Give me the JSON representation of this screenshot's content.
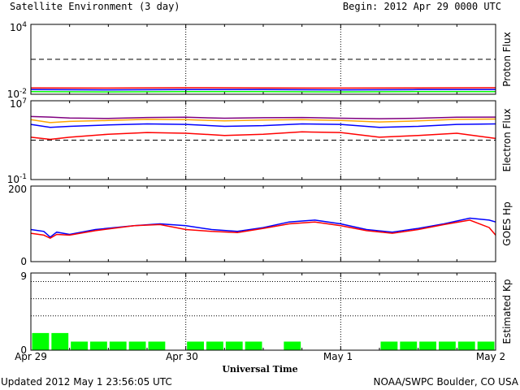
{
  "header": {
    "title": "Satellite Environment (3 day)",
    "begin": "Begin:  2012 Apr 29 0000 UTC"
  },
  "footer": {
    "updated": "Updated 2012 May  1 23:56:05 UTC",
    "credit": "NOAA/SWPC Boulder, CO USA"
  },
  "x_axis": {
    "label": "Universal Time",
    "ticks": [
      "Apr 29",
      "Apr 30",
      "May 1",
      "May 2"
    ]
  },
  "colors": {
    "red": "#ff0000",
    "blue": "#0000ff",
    "green": "#00ff00",
    "orange": "#ffa500",
    "purple": "#800080",
    "kp_bar": "#00ff00"
  },
  "chart_data": [
    {
      "type": "line",
      "name": "proton-flux",
      "ylabel": "Proton Flux",
      "scale": "log",
      "ylim": [
        0.01,
        10000
      ],
      "y_ticks": [
        {
          "v": 0.01,
          "base": "10",
          "exp": "-2"
        },
        {
          "v": 10000,
          "base": "10",
          "exp": "4"
        }
      ],
      "threshold": 10,
      "x": [
        0,
        12,
        24,
        36,
        48,
        60,
        72
      ],
      "series": [
        {
          "color": "red",
          "values": [
            0.035,
            0.034,
            0.036,
            0.035,
            0.034,
            0.035,
            0.036
          ]
        },
        {
          "color": "blue",
          "values": [
            0.025,
            0.024,
            0.025,
            0.025,
            0.024,
            0.025,
            0.025
          ]
        },
        {
          "color": "green",
          "values": [
            0.017,
            0.016,
            0.017,
            0.017,
            0.016,
            0.017,
            0.017
          ]
        }
      ]
    },
    {
      "type": "line",
      "name": "electron-flux",
      "ylabel": "Electron Flux",
      "scale": "log",
      "ylim": [
        0.1,
        10000000
      ],
      "y_ticks": [
        {
          "v": 0.1,
          "base": "10",
          "exp": "-1"
        },
        {
          "v": 10000000,
          "base": "10",
          "exp": "7"
        }
      ],
      "threshold": 1000,
      "x": [
        0,
        3,
        6,
        12,
        18,
        24,
        30,
        36,
        42,
        48,
        54,
        60,
        66,
        72
      ],
      "series": [
        {
          "color": "purple",
          "values": [
            250000,
            220000,
            180000,
            160000,
            200000,
            210000,
            170000,
            190000,
            200000,
            170000,
            150000,
            170000,
            210000,
            220000
          ]
        },
        {
          "color": "orange",
          "values": [
            120000,
            60000,
            80000,
            100000,
            130000,
            120000,
            90000,
            110000,
            120000,
            100000,
            70000,
            90000,
            130000,
            140000
          ]
        },
        {
          "color": "blue",
          "values": [
            40000,
            20000,
            25000,
            35000,
            45000,
            40000,
            25000,
            30000,
            45000,
            40000,
            20000,
            25000,
            40000,
            45000
          ]
        },
        {
          "color": "red",
          "values": [
            2000,
            1200,
            2000,
            4000,
            6000,
            5000,
            3000,
            4000,
            7000,
            6000,
            2000,
            3000,
            5000,
            1500
          ]
        }
      ]
    },
    {
      "type": "line",
      "name": "goes-hp",
      "ylabel": "GOES Hp",
      "scale": "linear",
      "ylim": [
        0,
        200
      ],
      "y_ticks": [
        {
          "v": 0,
          "label": "0"
        },
        {
          "v": 200,
          "label": "200"
        }
      ],
      "x": [
        0,
        2,
        3,
        4,
        6,
        10,
        16,
        20,
        24,
        28,
        32,
        36,
        40,
        44,
        48,
        52,
        56,
        60,
        64,
        68,
        71,
        72
      ],
      "series": [
        {
          "color": "blue",
          "values": [
            85,
            80,
            65,
            78,
            72,
            85,
            95,
            100,
            95,
            85,
            80,
            90,
            105,
            110,
            100,
            85,
            78,
            88,
            100,
            115,
            110,
            105
          ]
        },
        {
          "color": "red",
          "values": [
            75,
            70,
            62,
            72,
            70,
            82,
            95,
            98,
            85,
            80,
            77,
            88,
            100,
            105,
            95,
            82,
            75,
            85,
            98,
            110,
            90,
            70
          ]
        }
      ]
    },
    {
      "type": "bar",
      "name": "estimated-kp",
      "ylabel": "Estimated Kp",
      "scale": "linear",
      "ylim": [
        0,
        9
      ],
      "y_ticks": [
        {
          "v": 0,
          "label": "0"
        },
        {
          "v": 9,
          "label": "9"
        }
      ],
      "dotted_levels": [
        4,
        6,
        8
      ],
      "bar_hours": 3,
      "values": [
        2,
        2,
        1,
        1,
        1,
        1,
        1,
        0,
        1,
        1,
        1,
        1,
        0,
        1,
        0,
        0,
        0,
        0,
        1,
        1,
        1,
        1,
        1,
        1
      ]
    }
  ]
}
